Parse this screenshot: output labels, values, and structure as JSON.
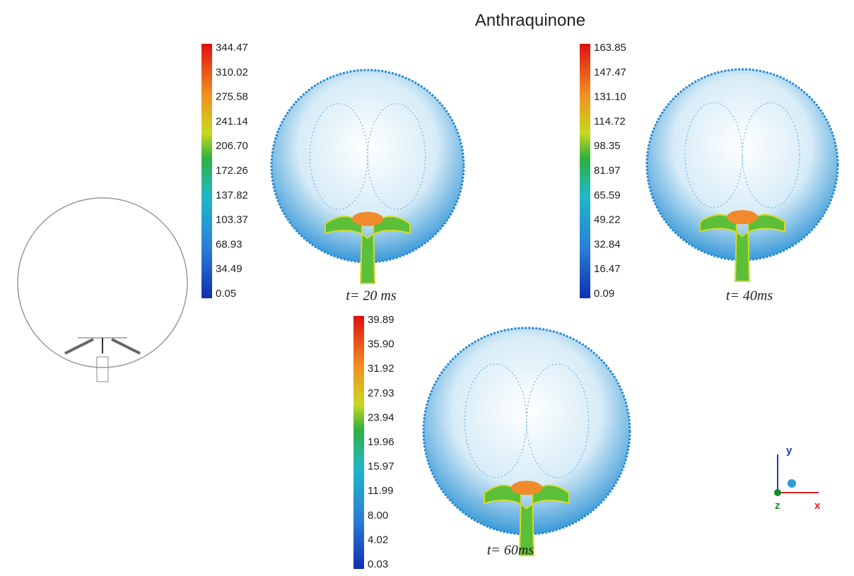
{
  "title": "Anthraquinone",
  "panels": [
    {
      "caption": "t=  20 ms",
      "colorbar_labels": [
        "344.47",
        "310.02",
        "275.58",
        "241.14",
        "206.70",
        "172.26",
        "137.82",
        "103.37",
        "68.93",
        "34.49",
        "0.05"
      ]
    },
    {
      "caption": "t=  40ms",
      "colorbar_labels": [
        "163.85",
        "147.47",
        "131.10",
        "114.72",
        "98.35",
        "81.97",
        "65.59",
        "49.22",
        "32.84",
        "16.47",
        "0.09"
      ]
    },
    {
      "caption": "t=  60ms",
      "colorbar_labels": [
        "39.89",
        "35.90",
        "31.92",
        "27.93",
        "23.94",
        "19.96",
        "15.97",
        "11.99",
        "8.00",
        "4.02",
        "0.03"
      ]
    }
  ],
  "axes_triad": {
    "y": "y",
    "z": "z",
    "x": "x"
  }
}
